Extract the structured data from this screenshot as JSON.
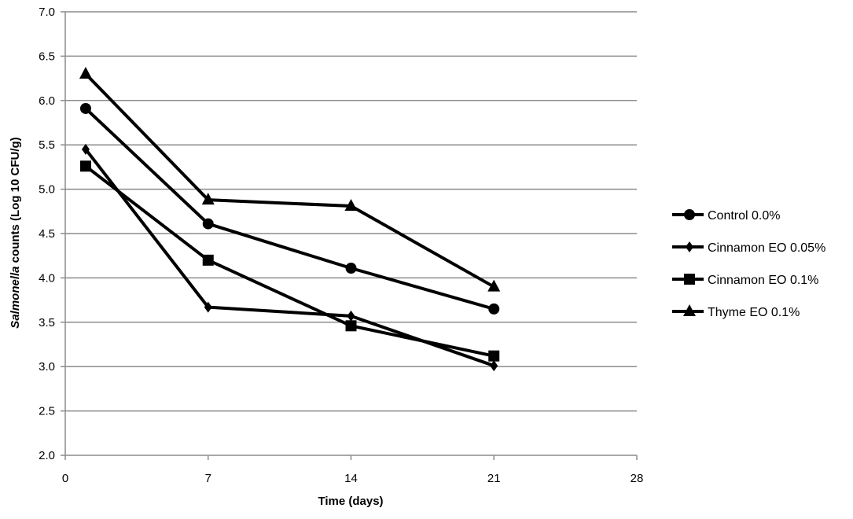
{
  "chart_data": {
    "type": "line",
    "title": "",
    "xlabel": "Time (days)",
    "ylabel_italic": "Salmonella",
    "ylabel_rest": " counts (Log 10 CFU/g)",
    "xlim": [
      0,
      28
    ],
    "ylim": [
      2.0,
      7.0
    ],
    "x_ticks": [
      "0",
      "7",
      "14",
      "21",
      "28"
    ],
    "y_ticks": [
      "2.0",
      "2.5",
      "3.0",
      "3.5",
      "4.0",
      "4.5",
      "5.0",
      "5.5",
      "6.0",
      "6.5",
      "7.0"
    ],
    "grid": "horizontal",
    "legend_position": "right",
    "series": [
      {
        "name": "Control 0.0%",
        "marker": "circle",
        "color": "#000000",
        "x": [
          1,
          7,
          14,
          21
        ],
        "y": [
          5.91,
          4.61,
          4.11,
          3.65
        ]
      },
      {
        "name": "Cinnamon EO 0.05%",
        "marker": "diamond",
        "color": "#000000",
        "x": [
          1,
          7,
          14,
          21
        ],
        "y": [
          5.45,
          3.67,
          3.57,
          3.01
        ]
      },
      {
        "name": "Cinnamon EO 0.1%",
        "marker": "square",
        "color": "#000000",
        "x": [
          1,
          7,
          14,
          21
        ],
        "y": [
          5.26,
          4.2,
          3.46,
          3.12
        ]
      },
      {
        "name": "Thyme EO 0.1%",
        "marker": "triangle",
        "color": "#000000",
        "x": [
          1,
          7,
          14,
          21
        ],
        "y": [
          6.3,
          4.88,
          4.81,
          3.9
        ]
      }
    ]
  }
}
